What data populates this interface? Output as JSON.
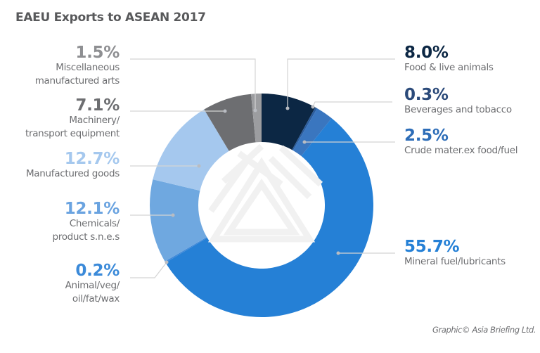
{
  "title": "EAEU Exports to ASEAN 2017",
  "credit": "Graphic© Asia Briefing Ltd.",
  "chart_data": {
    "type": "pie",
    "variant": "donut",
    "title": "EAEU Exports to ASEAN 2017",
    "unit": "%",
    "categories": [
      "Food & live animals",
      "Beverages and tobacco",
      "Crude mater.ex food/fuel",
      "Mineral fuel/lubricants",
      "Animal/veg/oil/fat/wax",
      "Chemicals/product s.n.e.s",
      "Manufactured goods",
      "Machinery/transport equipment",
      "Miscellaneous manufactured arts"
    ],
    "values": [
      8.0,
      0.3,
      2.5,
      55.7,
      0.2,
      12.1,
      12.7,
      7.1,
      1.5
    ],
    "colors": [
      "#0c2744",
      "#2b5d9e",
      "#3a76bf",
      "#2580d6",
      "#3e88d8",
      "#6fa8e0",
      "#a5c8ee",
      "#6d6e71",
      "#9c9da0"
    ],
    "start_angle_deg": 0,
    "direction": "clockwise",
    "legend_position": "callout labels"
  },
  "labels": {
    "food": {
      "pct": "8.0%",
      "desc": "Food & live animals",
      "color": "#0c2744"
    },
    "beverages": {
      "pct": "0.3%",
      "desc": "Beverages and tobacco",
      "color": "#2b4a7a"
    },
    "crude": {
      "pct": "2.5%",
      "desc": "Crude mater.ex food/fuel",
      "color": "#2d6db8"
    },
    "mineral": {
      "pct": "55.7%",
      "desc": "Mineral fuel/lubricants",
      "color": "#2580d6"
    },
    "animal": {
      "pct": "0.2%",
      "desc_1": "Animal/veg/",
      "desc_2": "oil/fat/wax",
      "color": "#3b8ad9"
    },
    "chemicals": {
      "pct": "12.1%",
      "desc_1": "Chemicals/",
      "desc_2": "product s.n.e.s",
      "color": "#6aa3e0"
    },
    "manufactured": {
      "pct": "12.7%",
      "desc": "Manufactured goods",
      "color": "#a5c8ee"
    },
    "machinery": {
      "pct": "7.1%",
      "desc_1": "Machinery/",
      "desc_2": "transport equipment",
      "color": "#6d6e71"
    },
    "misc": {
      "pct": "1.5%",
      "desc_1": "Miscellaneous",
      "desc_2": "manufactured arts",
      "color": "#8e8f92"
    }
  }
}
